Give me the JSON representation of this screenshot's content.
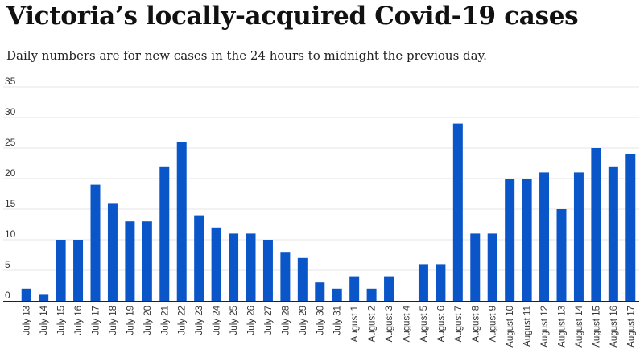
{
  "title": "Victoria’s locally-acquired Covid-19 cases",
  "subtitle": "Daily numbers are for new cases in the 24 hours to midnight the previous day.",
  "chart_data": {
    "type": "bar",
    "title": "Victoria’s locally-acquired Covid-19 cases",
    "subtitle": "Daily numbers are for new cases in the 24 hours to midnight the previous day.",
    "xlabel": "",
    "ylabel": "",
    "ylim": [
      0,
      35
    ],
    "yticks": [
      0,
      5,
      10,
      15,
      20,
      25,
      30,
      35
    ],
    "grid": true,
    "legend": "none",
    "bar_color": "#0a55c8",
    "categories": [
      "July 13",
      "July 14",
      "July 15",
      "July 16",
      "July 17",
      "July 18",
      "July 19",
      "July 20",
      "July 21",
      "July 22",
      "July 23",
      "July 24",
      "July 25",
      "July 26",
      "July 27",
      "July 28",
      "July 29",
      "July 30",
      "July 31",
      "August 1",
      "August 2",
      "August 3",
      "August 4",
      "August 5",
      "August 6",
      "August 7",
      "August 8",
      "August 9",
      "August 10",
      "August 11",
      "August 12",
      "August 13",
      "August 14",
      "August 15",
      "August 16",
      "August 17"
    ],
    "values": [
      2,
      1,
      10,
      10,
      19,
      16,
      13,
      13,
      22,
      26,
      14,
      12,
      11,
      11,
      10,
      8,
      7,
      3,
      2,
      4,
      2,
      4,
      0,
      6,
      6,
      29,
      11,
      11,
      20,
      20,
      21,
      15,
      21,
      25,
      22,
      24
    ]
  }
}
